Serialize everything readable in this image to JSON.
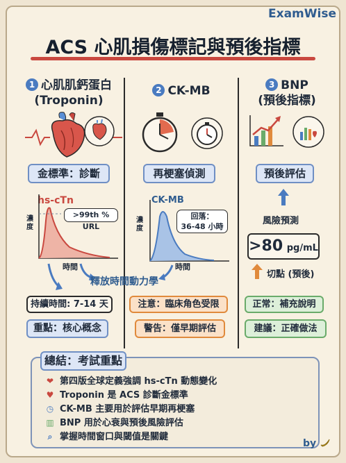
{
  "brand": "ExamWise",
  "title": "ACS 心肌損傷標記與預後指標",
  "col1": {
    "number": "1",
    "head1": "心肌肌鈣蛋白",
    "head2": "(Troponin)",
    "pill": "金標準：診斷",
    "chart_label": "hs-cTn",
    "callout": ">99th % URL",
    "y_label": "濃度",
    "x_label": "時間",
    "box1": "持續時間: 7-14 天",
    "box2": "重點：核心概念"
  },
  "col2": {
    "number": "2",
    "head": "CK-MB",
    "pill": "再梗塞偵測",
    "chart_label": "CK-MB",
    "callout1": "回落：",
    "callout2": "36-48 小時",
    "y_label": "濃度",
    "x_label": "時間",
    "box1": "注意：臨床角色受限",
    "box2": "警告：僅早期評估"
  },
  "col3": {
    "number": "3",
    "head1": "BNP",
    "head2": "(預後指標)",
    "pill": "預後評估",
    "risk": "風險預測",
    "value": ">80",
    "unit": "pg/mL",
    "cutoff": "切點 (預後)",
    "box1": "正常：補充說明",
    "box2": "建議：正確做法"
  },
  "kinetics_label": "釋放時間動力學",
  "summary": {
    "title": "總結：考試重點",
    "items": [
      {
        "icon": "heart-icon",
        "text": "第四版全球定義強調 hs-cTn 動態變化"
      },
      {
        "icon": "anatomical-heart-icon",
        "text": "Troponin 是 ACS 診斷金標準"
      },
      {
        "icon": "stopwatch-icon",
        "text": "CK-MB 主要用於評估早期再梗塞"
      },
      {
        "icon": "chart-icon",
        "text": "BNP 用於心衰與預後風險評估"
      },
      {
        "icon": "magnifier-icon",
        "text": "掌握時間窗口與閾值是關鍵"
      }
    ]
  },
  "by": "by",
  "colors": {
    "accent": "#c9483f",
    "blue": "#4a7bc0",
    "orange": "#e08a3c",
    "green": "#6aab6a"
  }
}
